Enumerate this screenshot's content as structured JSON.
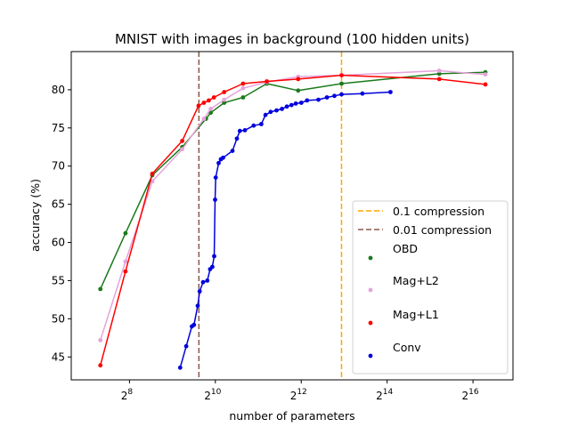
{
  "chart_data": {
    "type": "line",
    "title": "MNIST with images in background (100 hidden units)",
    "xlabel": "number of parameters",
    "ylabel": "accuracy (%)",
    "x_scale": "log2",
    "xlim": [
      100,
      125000
    ],
    "ylim": [
      42,
      85
    ],
    "x_ticks": [
      {
        "value": 256,
        "base": "2",
        "exp": "8"
      },
      {
        "value": 1024,
        "base": "2",
        "exp": "10"
      },
      {
        "value": 4096,
        "base": "2",
        "exp": "12"
      },
      {
        "value": 16384,
        "base": "2",
        "exp": "14"
      },
      {
        "value": 65536,
        "base": "2",
        "exp": "16"
      }
    ],
    "y_ticks": [
      45,
      50,
      55,
      60,
      65,
      70,
      75,
      80
    ],
    "grid": false,
    "legend_position": "lower-right",
    "vlines": [
      {
        "name": "0.1 compression",
        "x": 7850,
        "color": "#ffa500",
        "style": "dashed"
      },
      {
        "name": "0.01 compression",
        "x": 785,
        "color": "#8c564b",
        "style": "dashed"
      }
    ],
    "series": [
      {
        "name": "OBD",
        "color": "#1a7a1a",
        "x": [
          160,
          240,
          370,
          600,
          880,
          950,
          1180,
          1600,
          2350,
          3900,
          7850,
          38000,
          80000
        ],
        "y": [
          53.9,
          61.2,
          68.8,
          72.5,
          76.2,
          77.0,
          78.3,
          79.0,
          80.8,
          79.9,
          80.8,
          82.1,
          82.3
        ]
      },
      {
        "name": "Mag+L2",
        "color": "#e6a3db",
        "x": [
          160,
          240,
          370,
          600,
          850,
          950,
          1180,
          1600,
          2350,
          3900,
          7850,
          38000,
          80000
        ],
        "y": [
          47.2,
          57.5,
          68.0,
          72.2,
          76.2,
          77.5,
          78.7,
          80.2,
          81.0,
          81.7,
          81.9,
          82.5,
          82.0
        ]
      },
      {
        "name": "Mag+L1",
        "color": "#ff0000",
        "x": [
          160,
          240,
          370,
          600,
          780,
          850,
          920,
          1000,
          1180,
          1600,
          2350,
          3900,
          7850,
          38000,
          80000
        ],
        "y": [
          43.9,
          56.2,
          69.0,
          73.3,
          77.9,
          78.3,
          78.6,
          79.0,
          79.7,
          80.8,
          81.1,
          81.4,
          81.9,
          81.4,
          80.7
        ]
      },
      {
        "name": "Conv",
        "color": "#0000dd",
        "x": [
          580,
          640,
          700,
          725,
          770,
          795,
          840,
          900,
          940,
          975,
          1005,
          1020,
          1030,
          1080,
          1120,
          1160,
          1350,
          1450,
          1520,
          1650,
          1900,
          2150,
          2300,
          2500,
          2750,
          3000,
          3250,
          3500,
          3750,
          4100,
          4500,
          5400,
          6200,
          7000,
          7850,
          11000,
          17300
        ],
        "y": [
          43.6,
          46.4,
          49.0,
          49.2,
          51.7,
          53.6,
          54.8,
          55.0,
          56.5,
          56.8,
          58.2,
          65.6,
          68.5,
          70.4,
          70.9,
          71.1,
          72.0,
          73.6,
          74.6,
          74.7,
          75.3,
          75.5,
          76.7,
          77.1,
          77.3,
          77.5,
          77.8,
          78.0,
          78.2,
          78.3,
          78.6,
          78.7,
          79.0,
          79.2,
          79.4,
          79.5,
          79.7
        ]
      }
    ]
  }
}
